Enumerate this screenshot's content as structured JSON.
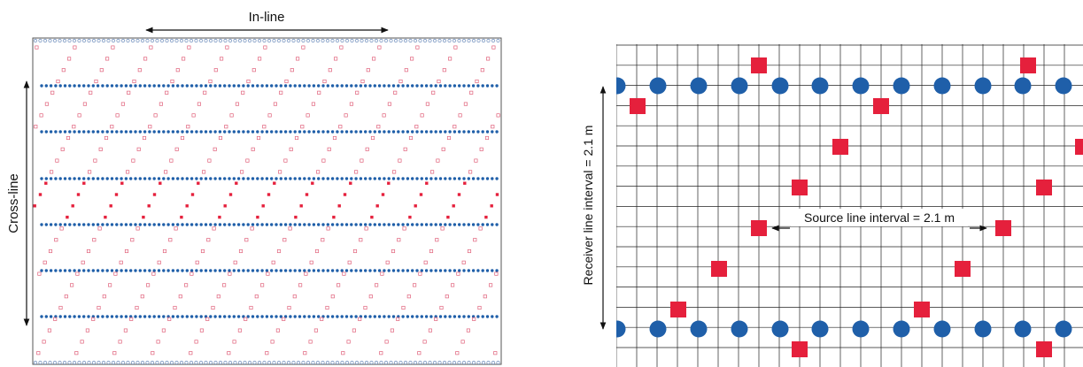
{
  "left_panel": {
    "inline_label": "In-line",
    "crossline_label": "Cross-line"
  },
  "right_panel": {
    "receiver_interval_label": "Receiver line interval = 2.1 m",
    "source_interval_label": "Source line interval = 2.1 m"
  },
  "colors": {
    "receiver_blue": "#1f5fa9",
    "source_red": "#e5203c",
    "source_outline": "#e0607a",
    "grid_line": "#222222",
    "frame": "#555555"
  },
  "icons": {
    "receiver": "filled-blue-circle",
    "source": "red-square",
    "arrow": "double-headed-arrow"
  }
}
